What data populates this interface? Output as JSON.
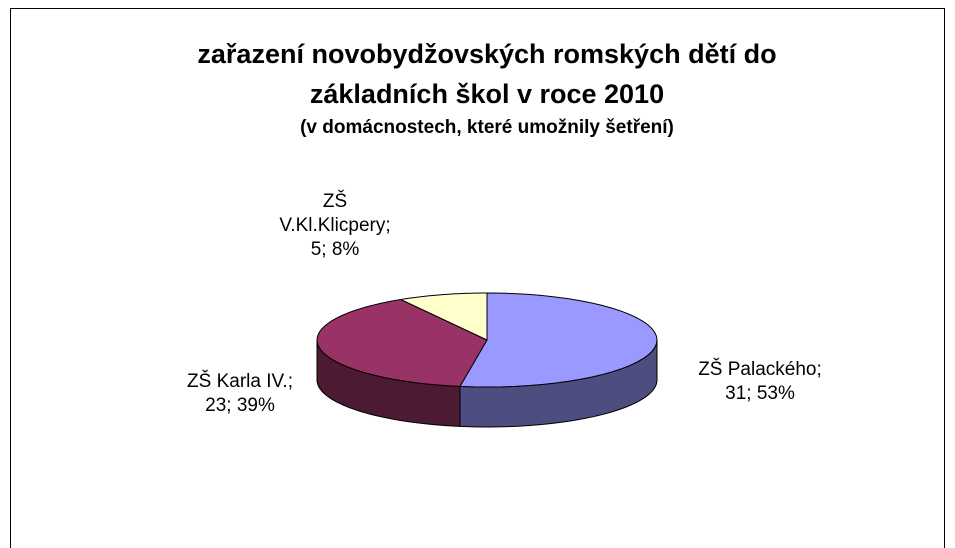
{
  "chart_data": {
    "type": "pie",
    "title": "zařazení novobydžovských romských dětí do základních škol v roce 2010",
    "subtitle": "(v domácnostech, které umožnily šetření)",
    "categories": [
      "ZŠ Palackého;",
      "ZŠ Karla IV.;",
      "ZŠ V.Kl.Klicpery;"
    ],
    "values": [
      31,
      23,
      5
    ],
    "value_labels": [
      "31; 53%",
      "23; 39%",
      "5; 8%"
    ],
    "colors": [
      "#9999ff",
      "#993366",
      "#ffffcc"
    ],
    "side_colors": [
      "#4d4d80",
      "#4d1a33",
      "#80805f"
    ]
  }
}
